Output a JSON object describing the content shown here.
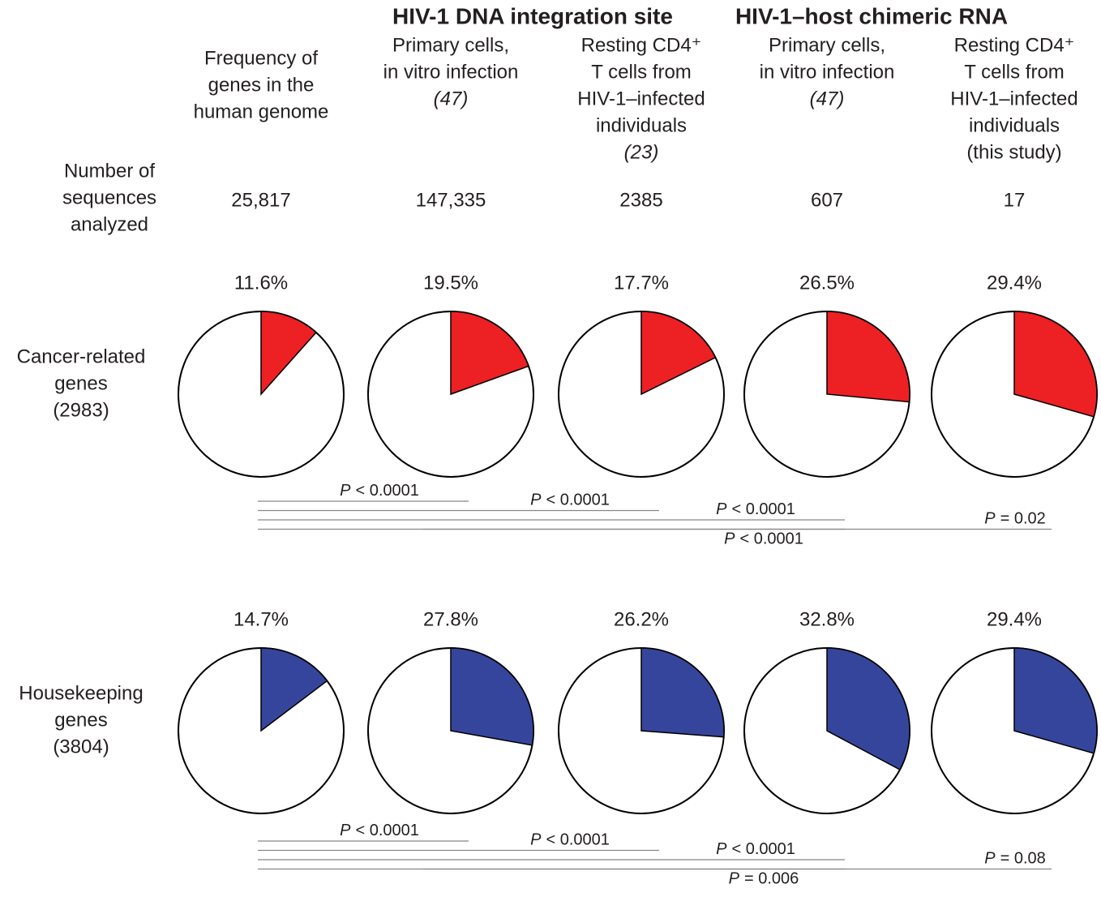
{
  "group_headers": [
    "HIV-1 DNA integration site",
    "HIV-1–host chimeric RNA"
  ],
  "columns": [
    [
      "Frequency of",
      "genes in the",
      "human genome"
    ],
    [
      "Primary cells,",
      "in vitro infection",
      "(47)"
    ],
    [
      "Resting CD4⁺",
      "T cells from",
      "HIV-1–infected",
      "individuals",
      "(23)"
    ],
    [
      "Primary cells,",
      "in vitro infection",
      "(47)"
    ],
    [
      "Resting CD4⁺",
      "T cells from",
      "HIV-1–infected",
      "individuals",
      "(this study)"
    ]
  ],
  "count_label": [
    "Number of",
    "sequences",
    "analyzed"
  ],
  "counts": [
    "25,817",
    "147,335",
    "2385",
    "607",
    "17"
  ],
  "chart_data": [
    {
      "type": "pie",
      "title": [
        "Cancer-related",
        "genes",
        "(2983)"
      ],
      "color": "#ed2024",
      "values": [
        11.6,
        19.5,
        17.7,
        26.5,
        29.4
      ],
      "value_labels": [
        "11.6%",
        "19.5%",
        "17.7%",
        "26.5%",
        "29.4%"
      ],
      "comparisons": [
        {
          "from": 0,
          "to": 1,
          "symbol": "P",
          "relation": "< 0.0001"
        },
        {
          "from": 0,
          "to": 2,
          "symbol": "P",
          "relation": "< 0.0001"
        },
        {
          "from": 0,
          "to": 3,
          "symbol": "P",
          "relation": "< 0.0001"
        },
        {
          "from": 0,
          "to": 4,
          "symbol": "P",
          "relation": "= 0.02"
        },
        {
          "from": 1,
          "to": 3,
          "symbol": "P",
          "relation": "< 0.0001"
        }
      ]
    },
    {
      "type": "pie",
      "title": [
        "Housekeeping",
        "genes",
        "(3804)"
      ],
      "color": "#36459c",
      "values": [
        14.7,
        27.8,
        26.2,
        32.8,
        29.4
      ],
      "value_labels": [
        "14.7%",
        "27.8%",
        "26.2%",
        "32.8%",
        "29.4%"
      ],
      "comparisons": [
        {
          "from": 0,
          "to": 1,
          "symbol": "P",
          "relation": "< 0.0001"
        },
        {
          "from": 0,
          "to": 2,
          "symbol": "P",
          "relation": "< 0.0001"
        },
        {
          "from": 0,
          "to": 3,
          "symbol": "P",
          "relation": "< 0.0001"
        },
        {
          "from": 0,
          "to": 4,
          "symbol": "P",
          "relation": "= 0.08"
        },
        {
          "from": 1,
          "to": 3,
          "symbol": "P",
          "relation": "= 0.006"
        }
      ]
    }
  ]
}
